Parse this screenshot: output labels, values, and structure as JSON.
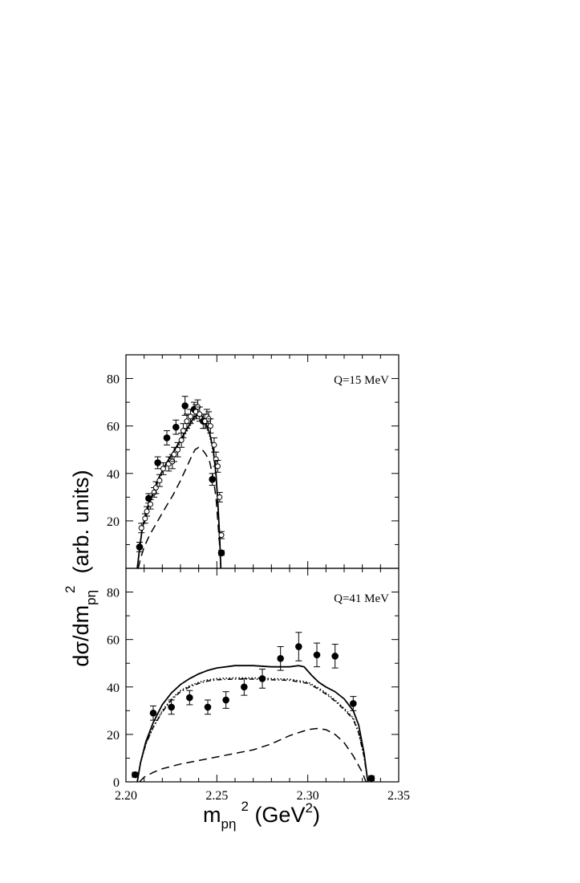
{
  "chart_data": [
    {
      "type": "scatter",
      "panel": "top",
      "annotation": "Q=15 MeV",
      "xlim": [
        2.2,
        2.35
      ],
      "ylim": [
        0,
        90
      ],
      "y_ticks": [
        "20",
        "40",
        "60",
        "80"
      ],
      "y_tick_values": [
        20,
        40,
        60,
        80
      ],
      "series": [
        {
          "style": "filled-circle",
          "points": [
            {
              "x": 2.2075,
              "y": 9,
              "err": 2
            },
            {
              "x": 2.2125,
              "y": 29.5,
              "err": 2
            },
            {
              "x": 2.2175,
              "y": 44.5,
              "err": 2.5
            },
            {
              "x": 2.2225,
              "y": 55,
              "err": 3
            },
            {
              "x": 2.2275,
              "y": 59.5,
              "err": 3
            },
            {
              "x": 2.2325,
              "y": 68.5,
              "err": 4
            },
            {
              "x": 2.2375,
              "y": 67,
              "err": 3
            },
            {
              "x": 2.2425,
              "y": 62,
              "err": 3
            },
            {
              "x": 2.2475,
              "y": 37.5,
              "err": 2.5
            },
            {
              "x": 2.2525,
              "y": 6.5,
              "err": 1
            }
          ]
        },
        {
          "style": "open-circle",
          "points": [
            {
              "x": 2.2085,
              "y": 17,
              "err": 2
            },
            {
              "x": 2.2105,
              "y": 21,
              "err": 2
            },
            {
              "x": 2.2115,
              "y": 24,
              "err": 2
            },
            {
              "x": 2.2135,
              "y": 27,
              "err": 2
            },
            {
              "x": 2.2155,
              "y": 32,
              "err": 2
            },
            {
              "x": 2.2165,
              "y": 34,
              "err": 2.5
            },
            {
              "x": 2.2185,
              "y": 37,
              "err": 2.5
            },
            {
              "x": 2.2205,
              "y": 42,
              "err": 2.5
            },
            {
              "x": 2.2235,
              "y": 44,
              "err": 3
            },
            {
              "x": 2.2255,
              "y": 45,
              "err": 3
            },
            {
              "x": 2.2265,
              "y": 48,
              "err": 3
            },
            {
              "x": 2.2285,
              "y": 50,
              "err": 3
            },
            {
              "x": 2.2305,
              "y": 54,
              "err": 3
            },
            {
              "x": 2.2315,
              "y": 58,
              "err": 3
            },
            {
              "x": 2.2335,
              "y": 62,
              "err": 3
            },
            {
              "x": 2.2355,
              "y": 64,
              "err": 3
            },
            {
              "x": 2.2385,
              "y": 66,
              "err": 3
            },
            {
              "x": 2.2395,
              "y": 68,
              "err": 3
            },
            {
              "x": 2.2405,
              "y": 65,
              "err": 3
            },
            {
              "x": 2.2435,
              "y": 62,
              "err": 3
            },
            {
              "x": 2.2445,
              "y": 64,
              "err": 3
            },
            {
              "x": 2.2455,
              "y": 63,
              "err": 3
            },
            {
              "x": 2.2465,
              "y": 60,
              "err": 3
            },
            {
              "x": 2.2485,
              "y": 52,
              "err": 3
            },
            {
              "x": 2.2495,
              "y": 46,
              "err": 3
            },
            {
              "x": 2.2505,
              "y": 43,
              "err": 2.5
            },
            {
              "x": 2.2515,
              "y": 30,
              "err": 2
            },
            {
              "x": 2.2525,
              "y": 14,
              "err": 1.5
            }
          ]
        }
      ],
      "curves": [
        {
          "style": "solid",
          "points": [
            [
              2.2062,
              0
            ],
            [
              2.2078,
              10
            ],
            [
              2.209,
              17
            ],
            [
              2.212,
              26
            ],
            [
              2.215,
              32
            ],
            [
              2.218,
              38
            ],
            [
              2.222,
              44
            ],
            [
              2.226,
              49
            ],
            [
              2.23,
              54
            ],
            [
              2.233,
              58
            ],
            [
              2.236,
              62
            ],
            [
              2.238,
              64
            ],
            [
              2.24,
              65
            ],
            [
              2.242,
              64
            ],
            [
              2.244,
              61
            ],
            [
              2.246,
              57
            ],
            [
              2.248,
              50
            ],
            [
              2.2495,
              40
            ],
            [
              2.2505,
              28
            ],
            [
              2.2515,
              14
            ],
            [
              2.2522,
              0
            ]
          ]
        },
        {
          "style": "dotted",
          "points": [
            [
              2.2062,
              0
            ],
            [
              2.2078,
              10
            ],
            [
              2.209,
              16.5
            ],
            [
              2.212,
              25
            ],
            [
              2.215,
              31
            ],
            [
              2.218,
              37
            ],
            [
              2.222,
              43
            ],
            [
              2.226,
              48
            ],
            [
              2.23,
              53
            ],
            [
              2.233,
              57
            ],
            [
              2.236,
              61
            ],
            [
              2.238,
              63
            ],
            [
              2.24,
              64
            ],
            [
              2.242,
              63
            ],
            [
              2.244,
              60
            ],
            [
              2.246,
              56
            ],
            [
              2.248,
              49
            ],
            [
              2.2495,
              39
            ],
            [
              2.2505,
              27
            ],
            [
              2.2515,
              13
            ],
            [
              2.2522,
              0
            ]
          ]
        },
        {
          "style": "dashed",
          "points": [
            [
              2.2068,
              0
            ],
            [
              2.208,
              4
            ],
            [
              2.21,
              9
            ],
            [
              2.213,
              14
            ],
            [
              2.216,
              18
            ],
            [
              2.219,
              22
            ],
            [
              2.222,
              26
            ],
            [
              2.226,
              31
            ],
            [
              2.23,
              37
            ],
            [
              2.233,
              42
            ],
            [
              2.236,
              47
            ],
            [
              2.238,
              50
            ],
            [
              2.24,
              51
            ],
            [
              2.242,
              50
            ],
            [
              2.244,
              48
            ],
            [
              2.246,
              45
            ],
            [
              2.248,
              38
            ],
            [
              2.2495,
              30
            ],
            [
              2.2505,
              20
            ],
            [
              2.2515,
              10
            ],
            [
              2.2522,
              0
            ]
          ]
        }
      ]
    },
    {
      "type": "scatter",
      "panel": "bottom",
      "annotation": "Q=41 MeV",
      "xlim": [
        2.2,
        2.35
      ],
      "ylim": [
        0,
        90
      ],
      "y_ticks": [
        "0",
        "20",
        "40",
        "60",
        "80"
      ],
      "y_tick_values": [
        0,
        20,
        40,
        60,
        80
      ],
      "x_ticks": [
        "2.20",
        "2.25",
        "2.30",
        "2.35"
      ],
      "x_tick_values": [
        2.2,
        2.25,
        2.3,
        2.35
      ],
      "xlabel": "m",
      "xlabel_sub": "pη",
      "xlabel_sup": "2",
      "xlabel_tail": " (GeV",
      "xlabel_tail_sup": "2",
      "xlabel_close": ")",
      "ylabel": "dσ/dm",
      "ylabel_sub": "pη",
      "ylabel_sup": "2",
      "ylabel_tail": "  (arb. units)",
      "series": [
        {
          "style": "filled-circle",
          "points": [
            {
              "x": 2.205,
              "y": 3,
              "err": 1
            },
            {
              "x": 2.215,
              "y": 29,
              "err": 3
            },
            {
              "x": 2.225,
              "y": 31.5,
              "err": 3
            },
            {
              "x": 2.235,
              "y": 35.5,
              "err": 3
            },
            {
              "x": 2.245,
              "y": 31.5,
              "err": 3
            },
            {
              "x": 2.255,
              "y": 34.5,
              "err": 3.5
            },
            {
              "x": 2.265,
              "y": 40,
              "err": 3.5
            },
            {
              "x": 2.275,
              "y": 43.5,
              "err": 4
            },
            {
              "x": 2.285,
              "y": 52,
              "err": 5
            },
            {
              "x": 2.295,
              "y": 57,
              "err": 6
            },
            {
              "x": 2.305,
              "y": 53.5,
              "err": 5
            },
            {
              "x": 2.315,
              "y": 53,
              "err": 5
            },
            {
              "x": 2.325,
              "y": 33,
              "err": 3
            },
            {
              "x": 2.335,
              "y": 1.5,
              "err": 1
            }
          ]
        }
      ],
      "curves": [
        {
          "style": "solid",
          "points": [
            [
              2.2062,
              0
            ],
            [
              2.208,
              8
            ],
            [
              2.211,
              17
            ],
            [
              2.215,
              25
            ],
            [
              2.22,
              32.5
            ],
            [
              2.225,
              37.5
            ],
            [
              2.23,
              41
            ],
            [
              2.235,
              43.5
            ],
            [
              2.24,
              45.5
            ],
            [
              2.245,
              47
            ],
            [
              2.25,
              48
            ],
            [
              2.255,
              48.5
            ],
            [
              2.26,
              49
            ],
            [
              2.265,
              49
            ],
            [
              2.27,
              49
            ],
            [
              2.28,
              48.5
            ],
            [
              2.29,
              48.5
            ],
            [
              2.295,
              49
            ],
            [
              2.298,
              48.5
            ],
            [
              2.302,
              45
            ],
            [
              2.306,
              42
            ],
            [
              2.31,
              40
            ],
            [
              2.315,
              38
            ],
            [
              2.32,
              35
            ],
            [
              2.325,
              30
            ],
            [
              2.328,
              24
            ],
            [
              2.331,
              12
            ],
            [
              2.333,
              0
            ]
          ]
        },
        {
          "style": "dotted",
          "points": [
            [
              2.2062,
              0
            ],
            [
              2.208,
              8
            ],
            [
              2.211,
              16
            ],
            [
              2.215,
              23
            ],
            [
              2.22,
              30
            ],
            [
              2.225,
              35
            ],
            [
              2.23,
              38.5
            ],
            [
              2.235,
              40.5
            ],
            [
              2.24,
              42
            ],
            [
              2.245,
              43
            ],
            [
              2.25,
              43.5
            ],
            [
              2.255,
              43.7
            ],
            [
              2.26,
              43.8
            ],
            [
              2.265,
              43.8
            ],
            [
              2.27,
              43.8
            ],
            [
              2.28,
              43.5
            ],
            [
              2.29,
              43.3
            ],
            [
              2.3,
              42
            ],
            [
              2.305,
              40
            ],
            [
              2.31,
              37.5
            ],
            [
              2.315,
              34.5
            ],
            [
              2.32,
              31
            ],
            [
              2.325,
              27
            ],
            [
              2.328,
              21
            ],
            [
              2.331,
              11
            ],
            [
              2.333,
              0
            ]
          ]
        },
        {
          "style": "dashdot",
          "points": [
            [
              2.2062,
              0
            ],
            [
              2.208,
              8
            ],
            [
              2.211,
              16
            ],
            [
              2.215,
              23
            ],
            [
              2.22,
              29.5
            ],
            [
              2.225,
              34.5
            ],
            [
              2.23,
              38
            ],
            [
              2.235,
              40
            ],
            [
              2.24,
              41.5
            ],
            [
              2.245,
              42.5
            ],
            [
              2.25,
              43
            ],
            [
              2.255,
              43.2
            ],
            [
              2.26,
              43.3
            ],
            [
              2.265,
              43.3
            ],
            [
              2.27,
              43.3
            ],
            [
              2.28,
              43
            ],
            [
              2.29,
              42.8
            ],
            [
              2.3,
              41.5
            ],
            [
              2.305,
              39.5
            ],
            [
              2.31,
              37
            ],
            [
              2.315,
              34
            ],
            [
              2.32,
              30.5
            ],
            [
              2.325,
              26.5
            ],
            [
              2.328,
              20.5
            ],
            [
              2.331,
              10.5
            ],
            [
              2.333,
              0
            ]
          ]
        },
        {
          "style": "dashed",
          "points": [
            [
              2.2075,
              0
            ],
            [
              2.21,
              2
            ],
            [
              2.215,
              4
            ],
            [
              2.22,
              5.5
            ],
            [
              2.23,
              7.5
            ],
            [
              2.24,
              9
            ],
            [
              2.25,
              10.5
            ],
            [
              2.26,
              12
            ],
            [
              2.27,
              13.5
            ],
            [
              2.28,
              16
            ],
            [
              2.29,
              19.5
            ],
            [
              2.3,
              22
            ],
            [
              2.305,
              22.5
            ],
            [
              2.31,
              22
            ],
            [
              2.315,
              20
            ],
            [
              2.32,
              16.5
            ],
            [
              2.325,
              11
            ],
            [
              2.33,
              4
            ],
            [
              2.332,
              0
            ]
          ]
        }
      ]
    }
  ]
}
